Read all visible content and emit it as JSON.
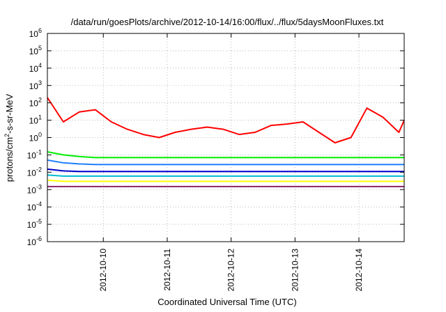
{
  "chart_data": {
    "type": "line",
    "title": "/data/run/goesPlots/archive/2012-10-14/16:00/flux/../flux/5daysMoonFluxes.txt",
    "xlabel": "Coordinated Universal Time (UTC)",
    "ylabel": {
      "base": "protons/cm",
      "sup": "2",
      "rest": "-s-sr-MeV"
    },
    "yscale": "log",
    "ylim_exp": [
      -6,
      6
    ],
    "y_ticks": [
      {
        "base": "10",
        "exp": "-6"
      },
      {
        "base": "10",
        "exp": "-5"
      },
      {
        "base": "10",
        "exp": "-4"
      },
      {
        "base": "10",
        "exp": "-3"
      },
      {
        "base": "10",
        "exp": "-2"
      },
      {
        "base": "10",
        "exp": "-1"
      },
      {
        "base": "10",
        "exp": "0"
      },
      {
        "base": "10",
        "exp": "1"
      },
      {
        "base": "10",
        "exp": "2"
      },
      {
        "base": "10",
        "exp": "3"
      },
      {
        "base": "10",
        "exp": "4"
      },
      {
        "base": "10",
        "exp": "5"
      },
      {
        "base": "10",
        "exp": "6"
      }
    ],
    "x_range": [
      "2012-10-09 03:00",
      "2012-10-14 17:00"
    ],
    "x_ticks": [
      "2012-10-10",
      "2012-10-11",
      "2012-10-12",
      "2012-10-13",
      "2012-10-14"
    ],
    "grid": true,
    "x_sample_hours": [
      0,
      6,
      12,
      18,
      24,
      30,
      36,
      42,
      48,
      54,
      60,
      66,
      72,
      78,
      84,
      90,
      96,
      102,
      108,
      114,
      120,
      126,
      132,
      134
    ],
    "series": [
      {
        "color": "#ff0000",
        "values": [
          200,
          8,
          30,
          40,
          8,
          3,
          1.5,
          1,
          2,
          3,
          4,
          3,
          1.5,
          2,
          5,
          6,
          8,
          2,
          0.5,
          1,
          50,
          15,
          2,
          10
        ]
      },
      {
        "color": "#00ee00",
        "values": [
          0.15,
          0.1,
          0.08,
          0.07,
          0.07,
          0.07,
          0.07,
          0.07,
          0.07,
          0.07,
          0.07,
          0.07,
          0.07,
          0.07,
          0.07,
          0.07,
          0.07,
          0.07,
          0.07,
          0.07,
          0.07,
          0.07,
          0.07,
          0.07
        ]
      },
      {
        "color": "#1e7fff",
        "values": [
          0.05,
          0.035,
          0.03,
          0.028,
          0.028,
          0.028,
          0.028,
          0.028,
          0.028,
          0.028,
          0.028,
          0.028,
          0.028,
          0.028,
          0.028,
          0.028,
          0.028,
          0.028,
          0.028,
          0.028,
          0.028,
          0.028,
          0.028,
          0.028
        ]
      },
      {
        "color": "#0000cc",
        "values": [
          0.015,
          0.012,
          0.011,
          0.011,
          0.011,
          0.011,
          0.011,
          0.011,
          0.011,
          0.011,
          0.011,
          0.011,
          0.011,
          0.011,
          0.011,
          0.011,
          0.011,
          0.011,
          0.011,
          0.011,
          0.011,
          0.011,
          0.011,
          0.011
        ]
      },
      {
        "color": "#00bcd4",
        "values": [
          0.007,
          0.006,
          0.006,
          0.006,
          0.006,
          0.006,
          0.006,
          0.006,
          0.006,
          0.006,
          0.006,
          0.006,
          0.006,
          0.006,
          0.006,
          0.006,
          0.006,
          0.006,
          0.006,
          0.006,
          0.006,
          0.006,
          0.006,
          0.006
        ]
      },
      {
        "color": "#ffff00",
        "values": [
          0.0035,
          0.003,
          0.003,
          0.003,
          0.003,
          0.003,
          0.003,
          0.003,
          0.003,
          0.003,
          0.003,
          0.003,
          0.003,
          0.003,
          0.003,
          0.003,
          0.003,
          0.003,
          0.003,
          0.003,
          0.003,
          0.003,
          0.003,
          0.003
        ]
      },
      {
        "color": "#8b2268",
        "values": [
          0.0015,
          0.0015,
          0.0015,
          0.0015,
          0.0015,
          0.0015,
          0.0015,
          0.0015,
          0.0015,
          0.0015,
          0.0015,
          0.0015,
          0.0015,
          0.0015,
          0.0015,
          0.0015,
          0.0015,
          0.0015,
          0.0015,
          0.0015,
          0.0015,
          0.0015,
          0.0015,
          0.0015
        ]
      }
    ]
  }
}
